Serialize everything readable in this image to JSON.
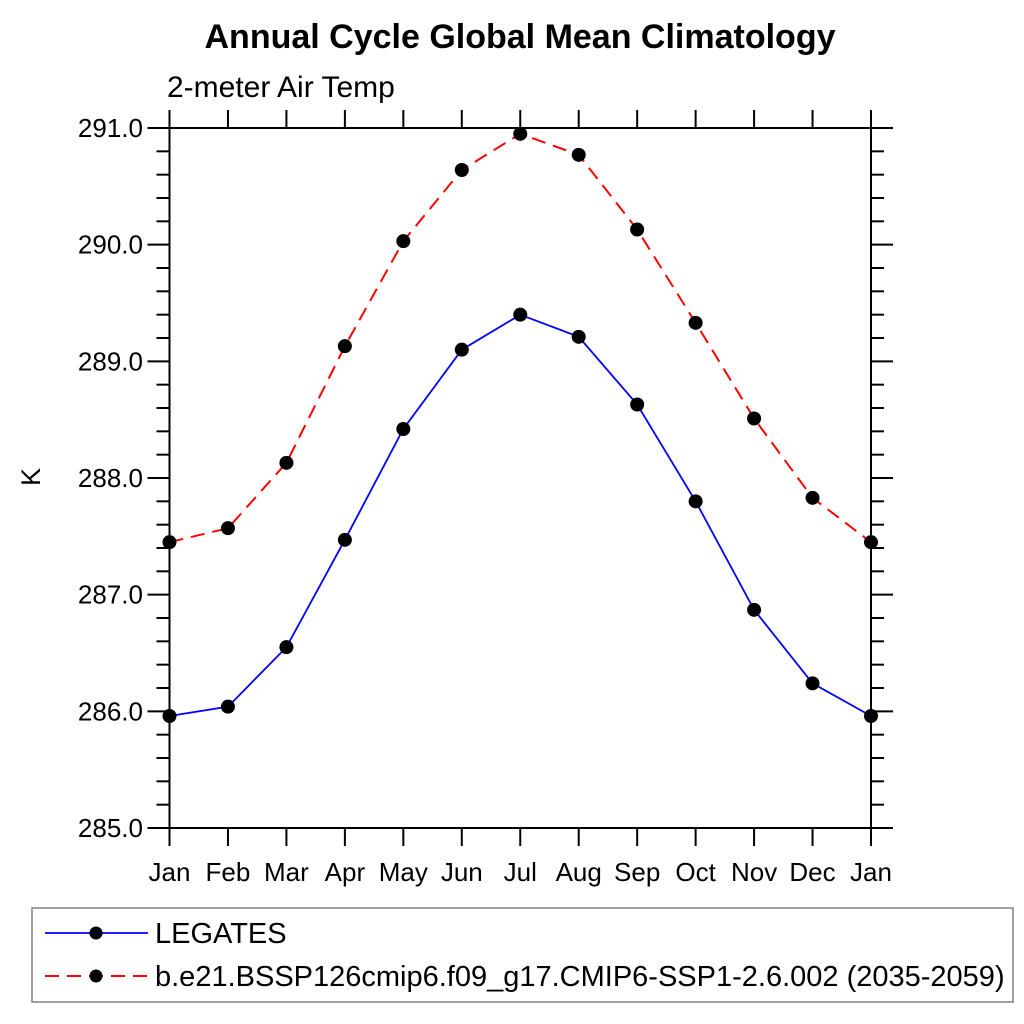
{
  "chart_data": {
    "type": "line",
    "title": "Annual Cycle Global Mean Climatology",
    "subtitle": "2-meter Air Temp",
    "ylabel": "K",
    "x_categories": [
      "Jan",
      "Feb",
      "Mar",
      "Apr",
      "May",
      "Jun",
      "Jul",
      "Aug",
      "Sep",
      "Oct",
      "Nov",
      "Dec",
      "Jan"
    ],
    "ylim": [
      285.0,
      291.0
    ],
    "ytick_step": 1.0,
    "yminor_step": 0.2,
    "ytick_labels": [
      "285.0",
      "286.0",
      "287.0",
      "288.0",
      "289.0",
      "290.0",
      "291.0"
    ],
    "grid": false,
    "legend_position": "bottom-left-box",
    "axis_color": "#000000",
    "marker_color": "#000000",
    "series": [
      {
        "name": "LEGATES",
        "color": "#0000ff",
        "style": "solid",
        "marker": "circle",
        "values": [
          285.96,
          286.04,
          286.55,
          287.47,
          288.42,
          289.1,
          289.4,
          289.21,
          288.63,
          287.8,
          286.87,
          286.24,
          285.96
        ]
      },
      {
        "name": "b.e21.BSSP126cmip6.f09_g17.CMIP6-SSP1-2.6.002 (2035-2059)",
        "color": "#ff0000",
        "style": "dashed",
        "marker": "circle",
        "values": [
          287.45,
          287.57,
          288.13,
          289.13,
          290.03,
          290.64,
          290.95,
          290.77,
          290.13,
          289.33,
          288.51,
          287.83,
          287.45
        ]
      }
    ]
  }
}
